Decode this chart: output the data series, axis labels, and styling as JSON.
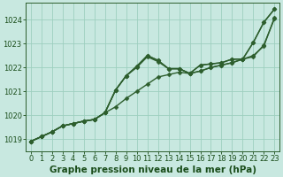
{
  "title": "Graphe pression niveau de la mer (hPa)",
  "xlim": [
    -0.5,
    23.5
  ],
  "ylim": [
    1018.5,
    1024.7
  ],
  "yticks": [
    1019,
    1020,
    1021,
    1022,
    1023,
    1024
  ],
  "xticks": [
    0,
    1,
    2,
    3,
    4,
    5,
    6,
    7,
    8,
    9,
    10,
    11,
    12,
    13,
    14,
    15,
    16,
    17,
    18,
    19,
    20,
    21,
    22,
    23
  ],
  "background_color": "#c8e8e0",
  "grid_color": "#9ecfbf",
  "line_color": "#2d5e2d",
  "line1": [
    1018.9,
    1019.1,
    1019.3,
    1019.55,
    1019.65,
    1019.75,
    1019.82,
    1020.1,
    1020.35,
    1020.7,
    1021.0,
    1021.3,
    1021.6,
    1021.7,
    1021.8,
    1021.75,
    1021.85,
    1022.0,
    1022.1,
    1022.2,
    1022.35,
    1022.5,
    1022.9,
    1024.1
  ],
  "line2": [
    1018.9,
    1019.1,
    1019.3,
    1019.55,
    1019.65,
    1019.75,
    1019.82,
    1020.1,
    1021.05,
    1021.65,
    1022.0,
    1022.45,
    1022.25,
    1021.95,
    1021.95,
    1021.75,
    1021.85,
    1022.0,
    1022.1,
    1022.2,
    1022.35,
    1022.45,
    1022.95,
    1024.05
  ],
  "line3": [
    1018.9,
    1019.1,
    1019.3,
    1019.55,
    1019.65,
    1019.75,
    1019.82,
    1020.1,
    1021.05,
    1021.65,
    1022.05,
    1022.5,
    1022.3,
    1021.95,
    1021.95,
    1021.75,
    1022.1,
    1022.15,
    1022.2,
    1022.35,
    1022.35,
    1023.05,
    1023.9,
    1024.45
  ],
  "line4": [
    1018.9,
    1019.1,
    1019.3,
    1019.55,
    1019.65,
    1019.75,
    1019.82,
    1020.1,
    1021.05,
    1021.65,
    1022.05,
    1022.5,
    1022.3,
    1021.95,
    1021.95,
    1021.75,
    1022.1,
    1022.15,
    1022.2,
    1022.35,
    1022.35,
    1023.05,
    1023.9,
    1024.45
  ],
  "marker": "D",
  "markersize": 2.5,
  "linewidth": 1.0,
  "tick_fontsize": 6.0,
  "title_fontsize": 7.5,
  "title_fontweight": "bold",
  "title_color": "#1a4d1a",
  "figsize": [
    3.2,
    2.0
  ],
  "dpi": 100
}
